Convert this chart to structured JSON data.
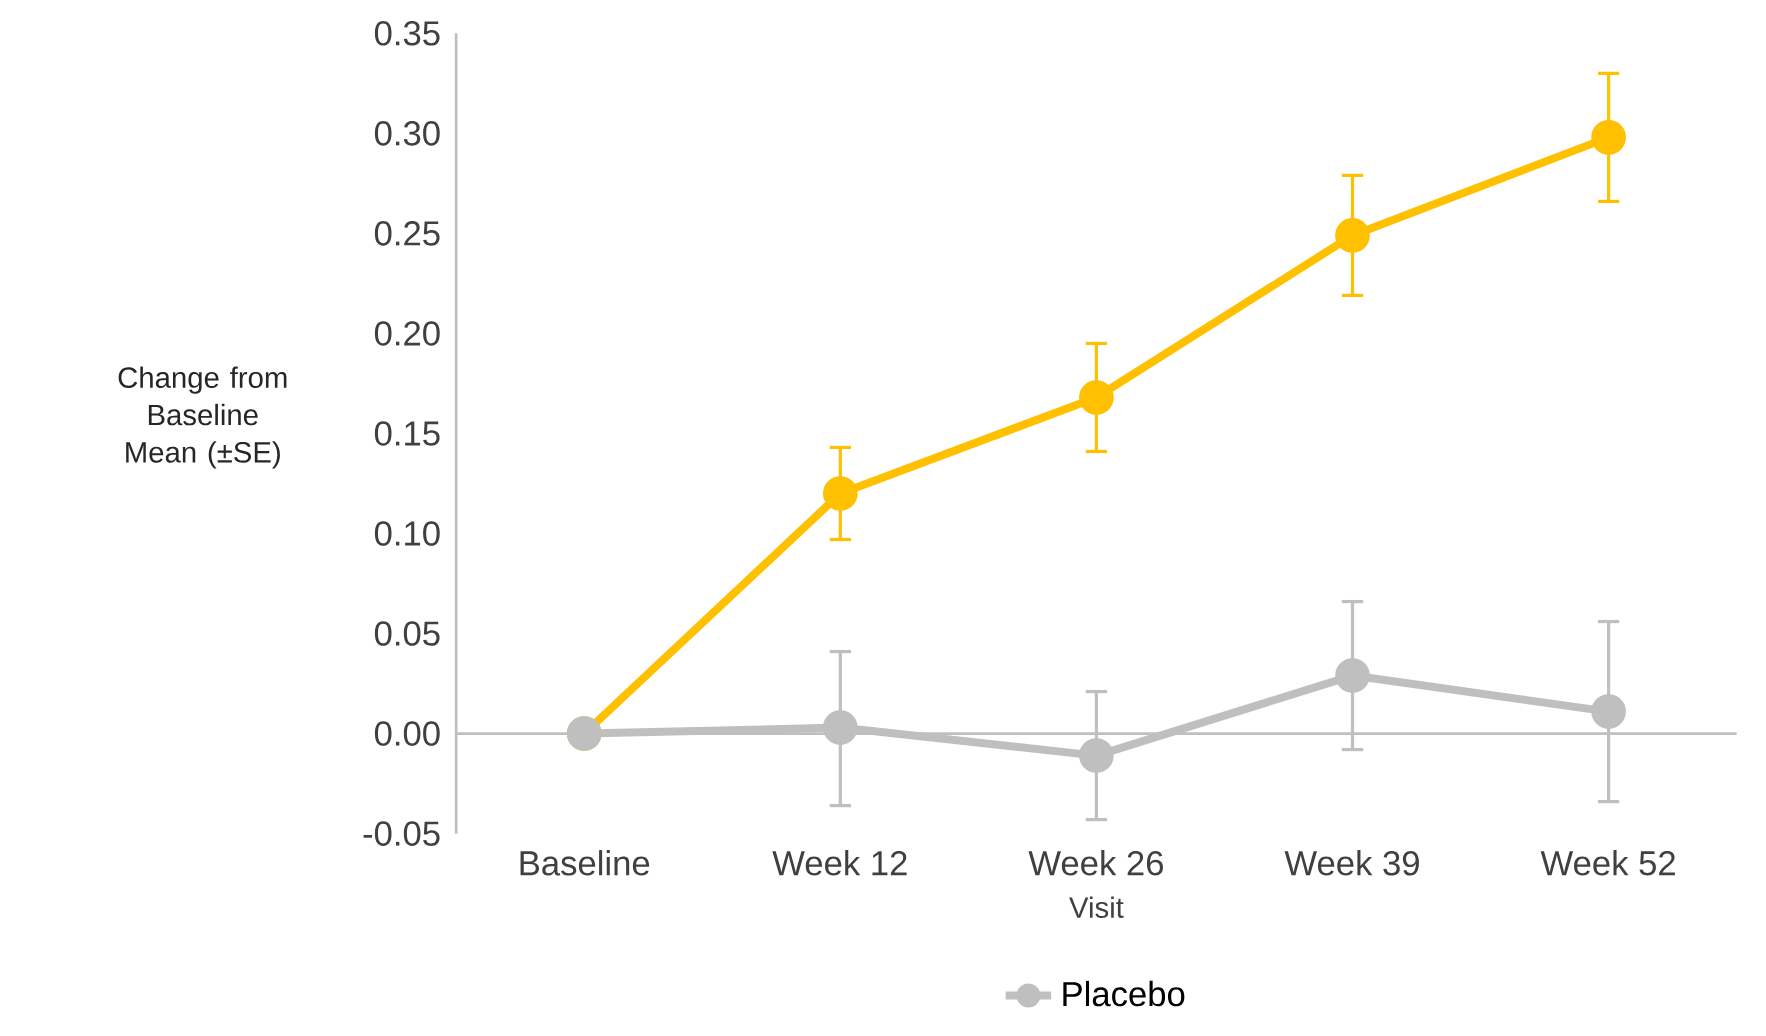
{
  "chart_data": {
    "type": "line",
    "xlabel": "Visit",
    "ylabel": "Change from Baseline Mean (±SE)",
    "categories": [
      "Baseline",
      "Week 12",
      "Week 26",
      "Week 39",
      "Week 52"
    ],
    "series": [
      {
        "color": "#ffc000",
        "values": [
          0,
          0.12,
          0.168,
          0.249,
          0.298
        ],
        "errors": [
          null,
          [
            0.097,
            0.143
          ],
          [
            0.141,
            0.195
          ],
          [
            0.219,
            0.279
          ],
          [
            0.266,
            0.33
          ]
        ]
      },
      {
        "name": "Placebo",
        "color": "#bfbfbf",
        "values": [
          0,
          0.003,
          -0.011,
          0.029,
          0.011
        ],
        "errors": [
          null,
          [
            -0.036,
            0.041
          ],
          [
            -0.043,
            0.021
          ],
          [
            -0.008,
            0.066
          ],
          [
            -0.034,
            0.056
          ]
        ]
      }
    ],
    "ylim": [
      -0.05,
      0.35
    ],
    "yticks": [
      {
        "value": -0.05,
        "label": "-0.05"
      },
      {
        "value": 0,
        "label": "0.00"
      },
      {
        "value": 0.05,
        "label": "0.05"
      },
      {
        "value": 0.1,
        "label": "0.10"
      },
      {
        "value": 0.15,
        "label": "0.15"
      },
      {
        "value": 0.2,
        "label": "0.20"
      },
      {
        "value": 0.25,
        "label": "0.25"
      },
      {
        "value": 0.3,
        "label": "0.30"
      },
      {
        "value": 0.35,
        "label": "0.35"
      }
    ],
    "marker": "circle",
    "line_style": "solid",
    "legend": "bottom"
  }
}
